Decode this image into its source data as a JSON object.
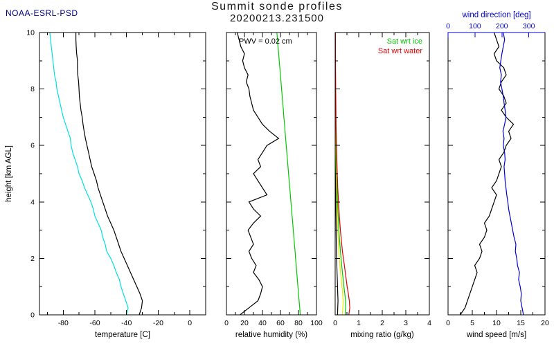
{
  "header": {
    "source_label": "NOAA-ESRL-PSD",
    "title_line1": "Summit sonde profiles",
    "title_line2": "20200213.231500"
  },
  "colors": {
    "navy": "#000080",
    "cyan": "#00DFDF",
    "green": "#00C800",
    "red": "#E00000",
    "yellow": "#E8E800",
    "blue": "#0000CD",
    "black": "#000000"
  },
  "chart_data": {
    "type": "line",
    "title": "Summit sonde profiles 20200213.231500",
    "ylabel": "height [km AGL]",
    "ylim": [
      0,
      10
    ],
    "yticks": [
      0,
      2,
      4,
      6,
      8,
      10
    ],
    "grid": false,
    "heights_km": [
      0,
      0.25,
      0.5,
      0.75,
      1,
      1.25,
      1.5,
      1.75,
      2,
      2.25,
      2.5,
      2.75,
      3,
      3.25,
      3.5,
      3.75,
      4,
      4.25,
      4.5,
      4.75,
      5,
      5.25,
      5.5,
      5.75,
      6,
      6.25,
      6.5,
      6.75,
      7,
      7.25,
      7.5,
      7.75,
      8,
      8.25,
      8.5,
      8.75,
      9,
      9.25,
      9.5,
      9.75,
      10
    ],
    "panels": [
      {
        "id": "temperature",
        "xlabel": "temperature [C]",
        "xlim": [
          -95,
          10
        ],
        "xticks": [
          -80,
          -60,
          -40,
          -20,
          0
        ],
        "minor_step": 10,
        "series": [
          {
            "name": "temperature",
            "color": "#000000",
            "values": [
              -32,
              -30.5,
              -30,
              -31.5,
              -33.5,
              -35.5,
              -37.5,
              -39.5,
              -41.5,
              -43.5,
              -45,
              -46.5,
              -48,
              -50,
              -52,
              -53.5,
              -55,
              -56.5,
              -58,
              -59,
              -60.5,
              -62,
              -63,
              -64,
              -65,
              -66,
              -66.8,
              -67.5,
              -68,
              -68.8,
              -69.3,
              -69.8,
              -70,
              -70.3,
              -70.8,
              -71,
              -71,
              -71.5,
              -71.8,
              -72,
              -72
            ]
          },
          {
            "name": "frost point",
            "color": "#00DFDF",
            "values": [
              -40,
              -39,
              -40.5,
              -42,
              -43.5,
              -44.5,
              -46.5,
              -48,
              -50,
              -52.5,
              -53.5,
              -55,
              -56,
              -58,
              -60,
              -61,
              -62.5,
              -64.5,
              -66.5,
              -68,
              -70,
              -71,
              -72.5,
              -74,
              -75,
              -75.5,
              -77,
              -78.5,
              -80,
              -81,
              -82,
              -83,
              -84,
              -84.5,
              -85.5,
              -86,
              -86.5,
              -87,
              -87.5,
              -88,
              -88.5
            ]
          }
        ]
      },
      {
        "id": "relative-humidity",
        "xlabel": "relative humidity (%)",
        "xlim": [
          0,
          100
        ],
        "xticks": [
          0,
          20,
          40,
          60,
          80,
          100
        ],
        "minor_step": 10,
        "annotation": "PWV = 0.02 cm",
        "series": [
          {
            "name": "relative humidity",
            "color": "#000000",
            "values": [
              15,
              25,
              35,
              38,
              40,
              36,
              30,
              33,
              28,
              25,
              30,
              27,
              24,
              30,
              38,
              30,
              25,
              45,
              40,
              35,
              30,
              38,
              35,
              40,
              45,
              58,
              48,
              40,
              35,
              30,
              28,
              26,
              25,
              22,
              24,
              20,
              18,
              20,
              16,
              14,
              12
            ]
          },
          {
            "name": "rh sat wrt ice",
            "color": "#00C800",
            "values": [
              82,
              81.4,
              80.7,
              80.1,
              79.4,
              78.8,
              78.1,
              77.5,
              76.8,
              76.2,
              75.5,
              74.9,
              74.2,
              73.6,
              72.9,
              72.3,
              71.6,
              71,
              70.3,
              69.7,
              69,
              68.4,
              67.7,
              67.1,
              66.4,
              65.8,
              65.1,
              64.5,
              63.8,
              63.2,
              62.5,
              61.9,
              61.2,
              60.6,
              59.9,
              59.3,
              58.6,
              58,
              57.3,
              56.7,
              56
            ]
          }
        ]
      },
      {
        "id": "mixing-ratio",
        "xlabel": "mixing ratio (g/kg)",
        "xlim": [
          0,
          4
        ],
        "xticks": [
          0,
          1,
          2,
          3,
          4
        ],
        "minor_step": 0.5,
        "legend_position": "top-right-inside",
        "legend": [
          {
            "label": "Sat wrt ice",
            "color": "#00C800"
          },
          {
            "label": "Sat wrt water",
            "color": "#E00000"
          }
        ],
        "series": [
          {
            "name": "mixing ratio",
            "color": "#000000",
            "values": [
              0.1,
              0.11,
              0.12,
              0.11,
              0.1,
              0.09,
              0.08,
              0.07,
              0.06,
              0.055,
              0.05,
              0.045,
              0.04,
              0.038,
              0.035,
              0.032,
              0.03,
              0.027,
              0.024,
              0.022,
              0.02,
              0.018,
              0.017,
              0.016,
              0.015,
              0.013,
              0.012,
              0.011,
              0.01,
              0.009,
              0.009,
              0.008,
              0.008,
              0.007,
              0.007,
              0.006,
              0.006,
              0.006,
              0.005,
              0.005,
              0.005
            ]
          },
          {
            "name": "dew point mixing ratio",
            "color": "#E8E800",
            "values": [
              0.3,
              0.33,
              0.34,
              0.32,
              0.29,
              0.26,
              0.23,
              0.2,
              0.18,
              0.16,
              0.14,
              0.125,
              0.11,
              0.1,
              0.09,
              0.08,
              0.07,
              0.062,
              0.055,
              0.049,
              0.044,
              0.039,
              0.035,
              0.031,
              0.028,
              0.025,
              0.022,
              0.02,
              0.018,
              0.016,
              0.014,
              0.013,
              0.012,
              0.011,
              0.01,
              0.009,
              0.008,
              0.007,
              0.007,
              0.006,
              0.006
            ]
          },
          {
            "name": "sat wrt ice",
            "color": "#00C800",
            "values": [
              0.42,
              0.45,
              0.44,
              0.41,
              0.37,
              0.34,
              0.31,
              0.28,
              0.25,
              0.225,
              0.2,
              0.18,
              0.16,
              0.145,
              0.13,
              0.115,
              0.1,
              0.09,
              0.08,
              0.072,
              0.064,
              0.057,
              0.051,
              0.046,
              0.041,
              0.037,
              0.033,
              0.03,
              0.027,
              0.024,
              0.022,
              0.02,
              0.018,
              0.016,
              0.015,
              0.013,
              0.012,
              0.011,
              0.01,
              0.009,
              0.008
            ]
          },
          {
            "name": "sat wrt water",
            "color": "#E00000",
            "values": [
              0.58,
              0.62,
              0.6,
              0.56,
              0.51,
              0.47,
              0.43,
              0.39,
              0.35,
              0.31,
              0.28,
              0.25,
              0.22,
              0.2,
              0.18,
              0.16,
              0.14,
              0.125,
              0.11,
              0.1,
              0.088,
              0.078,
              0.07,
              0.062,
              0.055,
              0.049,
              0.044,
              0.039,
              0.035,
              0.031,
              0.028,
              0.025,
              0.022,
              0.02,
              0.018,
              0.016,
              0.014,
              0.013,
              0.012,
              0.011,
              0.01
            ]
          }
        ]
      },
      {
        "id": "wind",
        "xlabel": "wind speed [m/s]",
        "xlim": [
          0,
          20
        ],
        "xticks": [
          0,
          5,
          10,
          15,
          20
        ],
        "minor_step": 2.5,
        "top_axis": {
          "label": "wind direction [deg]",
          "xlim": [
            0,
            360
          ],
          "xticks": [
            0,
            100,
            200,
            300
          ],
          "color": "#0000CD"
        },
        "series": [
          {
            "name": "wind speed",
            "color": "#000000",
            "axis": "bottom",
            "values": [
              2.5,
              3.5,
              4,
              4.5,
              5,
              5.5,
              6,
              5.5,
              6.5,
              7,
              6.5,
              7.5,
              8,
              7.5,
              8.5,
              9,
              9.5,
              10,
              9,
              10,
              10.5,
              11,
              10.5,
              11.5,
              12,
              13,
              12.5,
              13.5,
              12,
              11,
              12,
              11.5,
              10.5,
              11,
              12,
              11.5,
              10,
              9.5,
              10.5,
              10,
              9.5
            ]
          },
          {
            "name": "wind direction",
            "color": "#0000CD",
            "axis": "top",
            "values": [
              280,
              275,
              270,
              272,
              268,
              262,
              265,
              258,
              255,
              250,
              252,
              245,
              240,
              235,
              230,
              225,
              222,
              218,
              215,
              212,
              210,
              208,
              212,
              210,
              205,
              208,
              204,
              210,
              215,
              212,
              208,
              205,
              200,
              195,
              198,
              192,
              196,
              200,
              205,
              210,
              205
            ]
          }
        ]
      }
    ]
  }
}
